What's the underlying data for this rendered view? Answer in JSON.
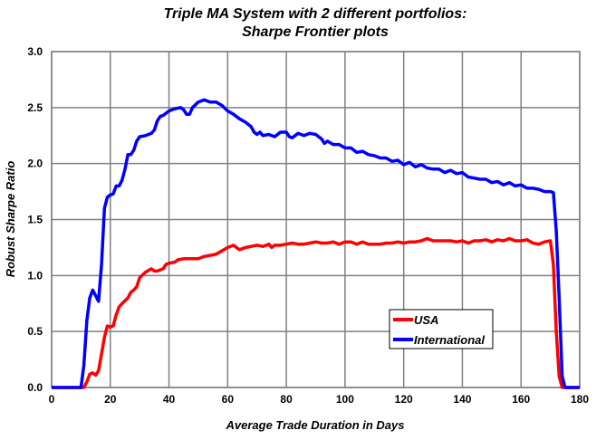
{
  "chart_data": {
    "type": "line",
    "title": [
      "Triple MA System  with  2 different portfolios:",
      "Sharpe Frontier plots"
    ],
    "xlabel": "Average Trade Duration in Days",
    "ylabel": "Robust Sharpe Ratio",
    "xlim": [
      0,
      180
    ],
    "ylim": [
      0,
      3.0
    ],
    "xticks": [
      0,
      20,
      40,
      60,
      80,
      100,
      120,
      140,
      160,
      180
    ],
    "xtick_labels": [
      "0",
      "20",
      "40",
      "60",
      "80",
      "100",
      "120",
      "140",
      "160",
      "180"
    ],
    "yticks": [
      0,
      0.5,
      1.0,
      1.5,
      2.0,
      2.5,
      3.0
    ],
    "ytick_labels": [
      "0.0",
      "0.5",
      "1.0",
      "1.5",
      "2.0",
      "2.5",
      "3.0"
    ],
    "grid": true,
    "legend_position": "lower-center-right",
    "series": [
      {
        "name": "USA",
        "color": "#ff0000",
        "x": [
          0,
          11,
          12,
          13,
          14,
          15,
          16,
          17,
          18,
          19,
          20,
          21,
          22,
          23,
          24,
          26,
          27,
          28,
          29,
          30,
          32,
          34,
          35,
          36,
          38,
          39,
          40,
          42,
          43,
          45,
          48,
          50,
          52,
          54,
          56,
          58,
          60,
          62,
          63,
          64,
          66,
          68,
          70,
          72,
          74,
          75,
          76,
          78,
          80,
          82,
          84,
          86,
          88,
          90,
          92,
          94,
          96,
          98,
          100,
          102,
          104,
          106,
          108,
          110,
          112,
          114,
          116,
          118,
          120,
          122,
          124,
          126,
          128,
          130,
          132,
          134,
          136,
          138,
          140,
          142,
          144,
          146,
          148,
          150,
          152,
          154,
          156,
          158,
          160,
          162,
          164,
          166,
          168,
          170,
          171,
          172,
          173,
          174,
          180
        ],
        "y": [
          0,
          0,
          0.05,
          0.12,
          0.13,
          0.11,
          0.15,
          0.3,
          0.45,
          0.55,
          0.54,
          0.55,
          0.65,
          0.72,
          0.75,
          0.8,
          0.85,
          0.87,
          0.9,
          0.98,
          1.03,
          1.06,
          1.04,
          1.04,
          1.06,
          1.1,
          1.11,
          1.12,
          1.14,
          1.15,
          1.15,
          1.15,
          1.17,
          1.18,
          1.19,
          1.22,
          1.25,
          1.27,
          1.25,
          1.23,
          1.25,
          1.26,
          1.27,
          1.26,
          1.28,
          1.25,
          1.27,
          1.27,
          1.28,
          1.29,
          1.28,
          1.28,
          1.29,
          1.3,
          1.29,
          1.29,
          1.3,
          1.28,
          1.3,
          1.3,
          1.28,
          1.3,
          1.28,
          1.28,
          1.28,
          1.29,
          1.29,
          1.3,
          1.29,
          1.3,
          1.3,
          1.31,
          1.33,
          1.31,
          1.31,
          1.31,
          1.31,
          1.3,
          1.31,
          1.29,
          1.31,
          1.31,
          1.32,
          1.3,
          1.32,
          1.31,
          1.33,
          1.31,
          1.31,
          1.32,
          1.29,
          1.28,
          1.3,
          1.31,
          1.1,
          0.5,
          0.1,
          0,
          0
        ]
      },
      {
        "name": "International",
        "color": "#0000ff",
        "x": [
          0,
          10,
          11,
          12,
          13,
          14,
          15,
          16,
          17,
          18,
          19,
          20,
          21,
          22,
          23,
          24,
          25,
          26,
          27,
          28,
          29,
          30,
          32,
          34,
          35,
          36,
          37,
          38,
          40,
          42,
          44,
          45,
          46,
          47,
          48,
          50,
          52,
          54,
          56,
          58,
          60,
          62,
          64,
          66,
          68,
          69,
          70,
          71,
          72,
          74,
          76,
          78,
          80,
          81,
          82,
          84,
          86,
          88,
          90,
          92,
          93,
          94,
          96,
          98,
          100,
          102,
          104,
          106,
          108,
          110,
          112,
          114,
          116,
          118,
          120,
          122,
          124,
          126,
          128,
          130,
          132,
          134,
          136,
          138,
          140,
          142,
          144,
          146,
          148,
          150,
          152,
          154,
          156,
          158,
          160,
          162,
          164,
          166,
          168,
          170,
          171,
          172,
          173,
          174,
          175,
          180
        ],
        "y": [
          0,
          0,
          0.2,
          0.6,
          0.8,
          0.87,
          0.82,
          0.77,
          1.1,
          1.6,
          1.7,
          1.72,
          1.73,
          1.8,
          1.8,
          1.85,
          1.95,
          2.08,
          2.08,
          2.12,
          2.2,
          2.24,
          2.25,
          2.27,
          2.3,
          2.38,
          2.42,
          2.43,
          2.47,
          2.49,
          2.5,
          2.48,
          2.44,
          2.44,
          2.5,
          2.55,
          2.57,
          2.55,
          2.55,
          2.52,
          2.47,
          2.44,
          2.4,
          2.37,
          2.33,
          2.28,
          2.26,
          2.28,
          2.25,
          2.26,
          2.24,
          2.28,
          2.28,
          2.24,
          2.23,
          2.27,
          2.25,
          2.27,
          2.26,
          2.22,
          2.18,
          2.2,
          2.17,
          2.17,
          2.14,
          2.14,
          2.1,
          2.11,
          2.08,
          2.07,
          2.05,
          2.05,
          2.02,
          2.03,
          1.99,
          2.01,
          1.97,
          1.99,
          1.96,
          1.95,
          1.95,
          1.92,
          1.94,
          1.91,
          1.92,
          1.88,
          1.87,
          1.86,
          1.86,
          1.83,
          1.84,
          1.81,
          1.83,
          1.8,
          1.81,
          1.78,
          1.78,
          1.77,
          1.75,
          1.75,
          1.74,
          1.4,
          0.8,
          0.1,
          0,
          0
        ]
      }
    ]
  }
}
